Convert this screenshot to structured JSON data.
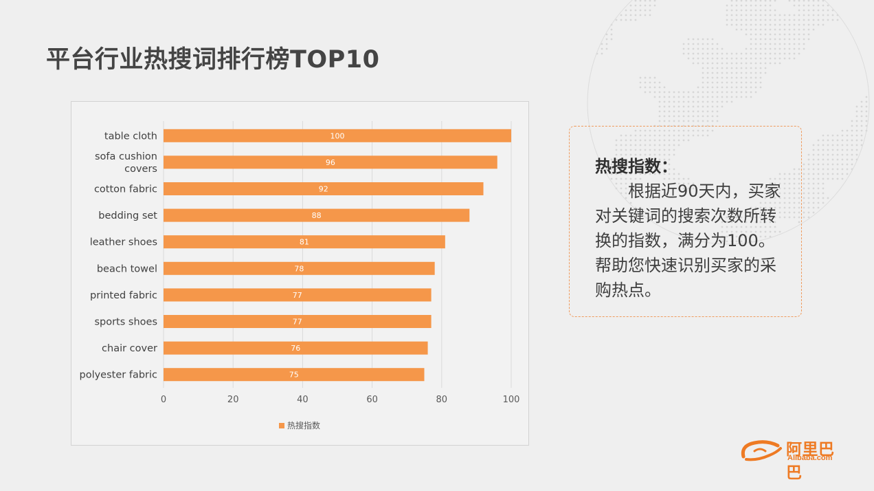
{
  "slide": {
    "title": "平台行业热搜词排行榜TOP10"
  },
  "note": {
    "title": "热搜指数：",
    "body": "根据近90天内，买家对关键词的搜索次数所转换的指数，满分为100。帮助您快速识别买家的采购热点。"
  },
  "logo": {
    "chinese": "阿里巴巴",
    "english": "Alibaba.com",
    "color": "#ee7a23"
  },
  "chart_data": {
    "type": "bar",
    "orientation": "horizontal",
    "categories": [
      "table cloth",
      "sofa cushion covers",
      "cotton fabric",
      "bedding set",
      "leather shoes",
      "beach towel",
      "printed fabric",
      "sports shoes",
      "chair cover",
      "polyester fabric"
    ],
    "series": [
      {
        "name": "热搜指数",
        "values": [
          100,
          96,
          92,
          88,
          81,
          78,
          77,
          77,
          76,
          75
        ],
        "color": "#f5974a"
      }
    ],
    "xlim": [
      0,
      100
    ],
    "xticks": [
      0,
      20,
      40,
      60,
      80,
      100
    ],
    "data_labels": true,
    "grid": true,
    "legend": "bottom",
    "title": "",
    "xlabel": "",
    "ylabel": ""
  }
}
